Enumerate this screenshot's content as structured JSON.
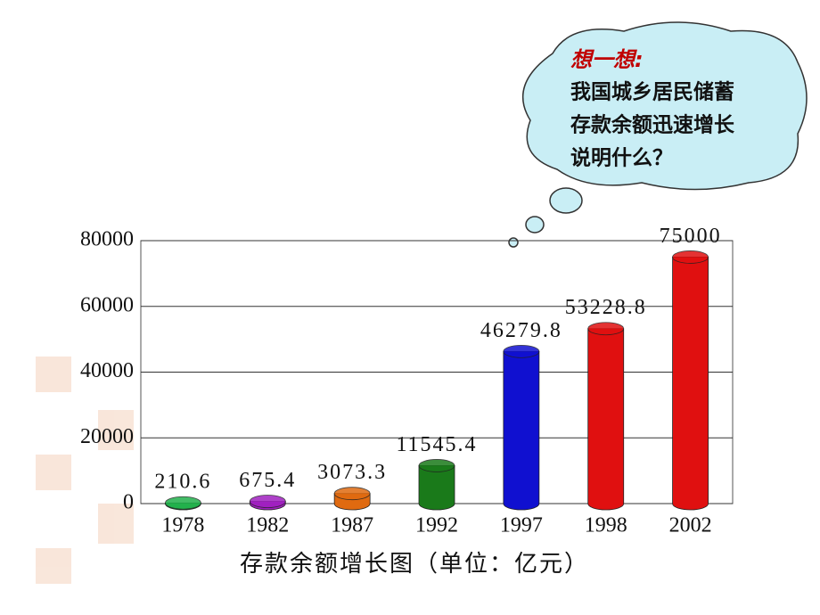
{
  "chart_data": {
    "type": "bar",
    "title": "存款余额增长图（单位：亿元）",
    "categories": [
      "1978",
      "1982",
      "1987",
      "1992",
      "1997",
      "1998",
      "2002"
    ],
    "values": [
      210.6,
      675.4,
      3073.3,
      11545.4,
      46279.8,
      53228.8,
      75000
    ],
    "colors": [
      "#22b14c",
      "#a020c0",
      "#e06a10",
      "#1a7a1a",
      "#1010d0",
      "#e01010",
      "#e01010"
    ],
    "ylim": [
      0,
      80000
    ],
    "yticks": [
      0,
      20000,
      40000,
      60000,
      80000
    ],
    "grid": true,
    "annotation": {
      "heading": "想一想:",
      "lines": [
        "我国城乡居民储蓄",
        "存款余额迅速增长",
        "说明什么？"
      ]
    }
  }
}
